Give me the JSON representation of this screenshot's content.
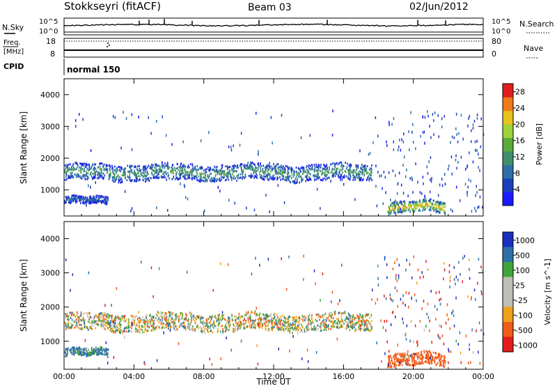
{
  "header": {
    "station": "Stokkseyri (fitACF)",
    "beam": "Beam 03",
    "date": "02/Jun/2012"
  },
  "sky_panel": {
    "left_label": "N.Sky",
    "right_label": "N.Search",
    "left_ticks": [
      "10^5",
      "10^0"
    ],
    "right_ticks": [
      "10^5",
      "10^0"
    ]
  },
  "freq_panel": {
    "left_label_1": "Freq.",
    "left_label_2": "[MHz]",
    "right_label": "Nave",
    "left_ticks": [
      "18",
      "8"
    ],
    "right_ticks": [
      "80",
      "0"
    ]
  },
  "cpid": {
    "label": "CPID",
    "value": "normal 150"
  },
  "colors": {
    "power": [
      "#1a1aff",
      "#1c3fbf",
      "#2e6fa8",
      "#3f8f6a",
      "#5aab3a",
      "#9fd23a",
      "#e8c21e",
      "#f07a1a",
      "#e21c1c"
    ],
    "velocity": [
      "#e21c1c",
      "#f05a1a",
      "#f0a11a",
      "#bebeb4",
      "#bebeb4",
      "#3fa53a",
      "#2e6fa8",
      "#1a2fbf"
    ],
    "background_gs": "#bebeb4"
  },
  "chart_data": [
    {
      "type": "heatmap",
      "name": "power-panel",
      "ylabel": "Slant Range [km]",
      "xlabel": "",
      "x_ticks": [
        "00:00",
        "04:00",
        "08:00",
        "12:00",
        "16:00",
        "20:00",
        "00:00"
      ],
      "xlim_hours": [
        0,
        24
      ],
      "y_ticks": [
        1000,
        2000,
        3000,
        4000
      ],
      "ylim_km": [
        180,
        4500
      ],
      "colorbar": {
        "label": "Power [dB]",
        "ticks": [
          4,
          8,
          12,
          16,
          20,
          24,
          28
        ],
        "range": [
          0,
          30
        ]
      },
      "scatter_regions": [
        {
          "t_start": 0.0,
          "t_end": 17.6,
          "r_center_km": 1550,
          "r_width_km": 250,
          "power_db": 10
        },
        {
          "t_start": 0.0,
          "t_end": 2.5,
          "r_center_km": 650,
          "r_width_km": 120,
          "power_db": 6
        },
        {
          "t_start": 18.5,
          "t_end": 21.8,
          "r_center_km": 450,
          "r_width_km": 180,
          "power_db": 18
        }
      ]
    },
    {
      "type": "heatmap",
      "name": "velocity-panel",
      "ylabel": "Slant Range [km]",
      "xlabel": "Time UT",
      "x_ticks": [
        "00:00",
        "04:00",
        "08:00",
        "12:00",
        "16:00",
        "20:00",
        "00:00"
      ],
      "xlim_hours": [
        0,
        24
      ],
      "y_ticks": [
        1000,
        2000,
        3000,
        4000
      ],
      "ylim_km": [
        180,
        4500
      ],
      "colorbar": {
        "label": "Velocity [m s^-1]",
        "ticks": [
          "1000",
          "500",
          "100",
          "25",
          "-25",
          "-100",
          "-500",
          "-1000"
        ]
      },
      "scatter_regions": [
        {
          "t_start": 0.0,
          "t_end": 17.6,
          "r_center_km": 1550,
          "r_width_km": 250,
          "velocity_ms": 0
        },
        {
          "t_start": 0.0,
          "t_end": 2.5,
          "r_center_km": 650,
          "r_width_km": 120,
          "velocity_ms": 150
        },
        {
          "t_start": 18.5,
          "t_end": 21.8,
          "r_center_km": 450,
          "r_width_km": 180,
          "velocity_ms": -300
        }
      ]
    }
  ]
}
